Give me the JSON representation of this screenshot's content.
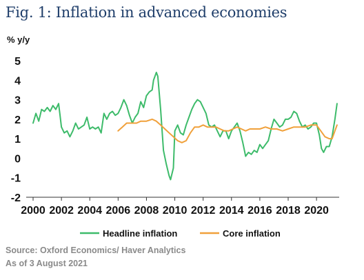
{
  "chart_data": {
    "type": "line",
    "title": "Fig. 1: Inflation in advanced economies",
    "ylabel": "% y/y",
    "xlabel": "",
    "xlim": [
      2000,
      2021.6
    ],
    "ylim": [
      -2,
      5
    ],
    "x_ticks": [
      "2000",
      "2002",
      "2004",
      "2006",
      "2008",
      "2010",
      "2012",
      "2014",
      "2016",
      "2018",
      "2020"
    ],
    "y_ticks": [
      "5",
      "4",
      "3",
      "2",
      "1",
      "0",
      "-1",
      "-2"
    ],
    "grid": false,
    "legend": "bottom",
    "series": [
      {
        "name": "Headline inflation",
        "color": "#3dbb6a",
        "points": [
          [
            2000.0,
            1.8
          ],
          [
            2000.2,
            2.3
          ],
          [
            2000.4,
            1.9
          ],
          [
            2000.6,
            2.5
          ],
          [
            2000.8,
            2.4
          ],
          [
            2001.0,
            2.6
          ],
          [
            2001.2,
            2.4
          ],
          [
            2001.4,
            2.7
          ],
          [
            2001.6,
            2.5
          ],
          [
            2001.8,
            2.8
          ],
          [
            2001.9,
            2.2
          ],
          [
            2002.0,
            1.6
          ],
          [
            2002.2,
            1.3
          ],
          [
            2002.4,
            1.4
          ],
          [
            2002.6,
            1.1
          ],
          [
            2002.8,
            1.4
          ],
          [
            2003.0,
            1.8
          ],
          [
            2003.2,
            1.5
          ],
          [
            2003.4,
            1.6
          ],
          [
            2003.6,
            1.7
          ],
          [
            2003.8,
            2.1
          ],
          [
            2004.0,
            1.5
          ],
          [
            2004.2,
            1.6
          ],
          [
            2004.4,
            1.5
          ],
          [
            2004.6,
            1.6
          ],
          [
            2004.8,
            1.3
          ],
          [
            2005.0,
            2.3
          ],
          [
            2005.2,
            2.0
          ],
          [
            2005.4,
            2.3
          ],
          [
            2005.6,
            2.4
          ],
          [
            2005.8,
            2.2
          ],
          [
            2006.0,
            2.3
          ],
          [
            2006.2,
            2.6
          ],
          [
            2006.4,
            3.0
          ],
          [
            2006.6,
            2.7
          ],
          [
            2006.8,
            2.2
          ],
          [
            2007.0,
            1.8
          ],
          [
            2007.2,
            2.1
          ],
          [
            2007.4,
            2.3
          ],
          [
            2007.6,
            2.9
          ],
          [
            2007.8,
            2.6
          ],
          [
            2008.0,
            3.2
          ],
          [
            2008.2,
            3.4
          ],
          [
            2008.4,
            3.5
          ],
          [
            2008.5,
            4.0
          ],
          [
            2008.7,
            4.4
          ],
          [
            2008.8,
            4.2
          ],
          [
            2009.0,
            2.5
          ],
          [
            2009.2,
            0.4
          ],
          [
            2009.4,
            -0.3
          ],
          [
            2009.6,
            -0.9
          ],
          [
            2009.7,
            -1.1
          ],
          [
            2009.9,
            -0.5
          ],
          [
            2010.0,
            1.4
          ],
          [
            2010.2,
            1.7
          ],
          [
            2010.4,
            1.3
          ],
          [
            2010.6,
            1.2
          ],
          [
            2010.8,
            1.7
          ],
          [
            2011.0,
            2.1
          ],
          [
            2011.2,
            2.5
          ],
          [
            2011.4,
            2.8
          ],
          [
            2011.6,
            3.0
          ],
          [
            2011.8,
            2.9
          ],
          [
            2012.0,
            2.6
          ],
          [
            2012.2,
            2.3
          ],
          [
            2012.4,
            1.7
          ],
          [
            2012.6,
            1.6
          ],
          [
            2012.8,
            1.7
          ],
          [
            2013.0,
            1.4
          ],
          [
            2013.2,
            1.1
          ],
          [
            2013.4,
            1.4
          ],
          [
            2013.6,
            1.4
          ],
          [
            2013.8,
            1.0
          ],
          [
            2014.0,
            1.4
          ],
          [
            2014.2,
            1.6
          ],
          [
            2014.4,
            1.8
          ],
          [
            2014.6,
            1.4
          ],
          [
            2014.8,
            0.8
          ],
          [
            2015.0,
            0.1
          ],
          [
            2015.2,
            0.3
          ],
          [
            2015.4,
            0.2
          ],
          [
            2015.6,
            0.4
          ],
          [
            2015.8,
            0.3
          ],
          [
            2016.0,
            0.7
          ],
          [
            2016.2,
            0.5
          ],
          [
            2016.4,
            0.7
          ],
          [
            2016.6,
            0.9
          ],
          [
            2016.8,
            1.5
          ],
          [
            2017.0,
            2.0
          ],
          [
            2017.2,
            1.8
          ],
          [
            2017.4,
            1.6
          ],
          [
            2017.6,
            1.7
          ],
          [
            2017.8,
            2.0
          ],
          [
            2018.0,
            2.0
          ],
          [
            2018.2,
            2.1
          ],
          [
            2018.4,
            2.4
          ],
          [
            2018.6,
            2.3
          ],
          [
            2018.8,
            1.9
          ],
          [
            2019.0,
            1.6
          ],
          [
            2019.2,
            1.7
          ],
          [
            2019.4,
            1.5
          ],
          [
            2019.6,
            1.6
          ],
          [
            2019.8,
            1.8
          ],
          [
            2020.0,
            1.8
          ],
          [
            2020.2,
            1.2
          ],
          [
            2020.35,
            0.5
          ],
          [
            2020.5,
            0.3
          ],
          [
            2020.7,
            0.6
          ],
          [
            2020.9,
            0.6
          ],
          [
            2021.1,
            1.1
          ],
          [
            2021.3,
            2.0
          ],
          [
            2021.45,
            2.8
          ]
        ]
      },
      {
        "name": "Core inflation",
        "color": "#f0a03a",
        "points": [
          [
            2006.0,
            1.4
          ],
          [
            2006.3,
            1.6
          ],
          [
            2006.6,
            1.8
          ],
          [
            2007.0,
            1.8
          ],
          [
            2007.3,
            1.8
          ],
          [
            2007.6,
            1.9
          ],
          [
            2008.0,
            1.9
          ],
          [
            2008.4,
            2.0
          ],
          [
            2008.7,
            1.9
          ],
          [
            2009.0,
            1.7
          ],
          [
            2009.3,
            1.5
          ],
          [
            2009.6,
            1.3
          ],
          [
            2009.9,
            1.1
          ],
          [
            2010.2,
            0.9
          ],
          [
            2010.5,
            0.8
          ],
          [
            2010.8,
            0.9
          ],
          [
            2011.1,
            1.3
          ],
          [
            2011.4,
            1.6
          ],
          [
            2011.7,
            1.6
          ],
          [
            2012.0,
            1.7
          ],
          [
            2012.3,
            1.6
          ],
          [
            2012.6,
            1.6
          ],
          [
            2012.9,
            1.6
          ],
          [
            2013.2,
            1.5
          ],
          [
            2013.5,
            1.4
          ],
          [
            2013.8,
            1.4
          ],
          [
            2014.1,
            1.5
          ],
          [
            2014.4,
            1.6
          ],
          [
            2014.7,
            1.5
          ],
          [
            2015.0,
            1.4
          ],
          [
            2015.3,
            1.5
          ],
          [
            2015.6,
            1.5
          ],
          [
            2016.0,
            1.5
          ],
          [
            2016.4,
            1.6
          ],
          [
            2016.8,
            1.5
          ],
          [
            2017.2,
            1.5
          ],
          [
            2017.6,
            1.4
          ],
          [
            2018.0,
            1.5
          ],
          [
            2018.4,
            1.6
          ],
          [
            2018.8,
            1.6
          ],
          [
            2019.2,
            1.6
          ],
          [
            2019.6,
            1.7
          ],
          [
            2020.0,
            1.7
          ],
          [
            2020.3,
            1.4
          ],
          [
            2020.6,
            1.1
          ],
          [
            2020.9,
            1.0
          ],
          [
            2021.1,
            1.0
          ],
          [
            2021.3,
            1.4
          ],
          [
            2021.45,
            1.7
          ]
        ]
      }
    ]
  },
  "footer": {
    "source": "Source: Oxford Economics/ Haver Analytics",
    "date": "As of 3 August 2021"
  }
}
